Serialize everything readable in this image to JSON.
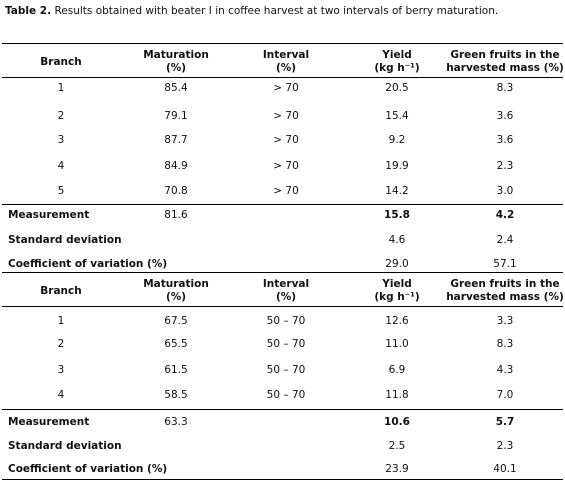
{
  "caption": {
    "label": "Table 2.",
    "text": "Results obtained with beater I in coffee harvest at two intervals of berry maturation."
  },
  "headers": {
    "branch": "Branch",
    "maturation_1": "Maturation",
    "maturation_2": "(%)",
    "interval_1": "Interval",
    "interval_2": "(%)",
    "yield_1": "Yield",
    "yield_2": "(kg h⁻¹)",
    "green_1": "Green fruits in the",
    "green_2": "harvested mass (%)"
  },
  "section1": {
    "rows": [
      {
        "branch": "1",
        "maturation": "85.4",
        "interval": "> 70",
        "yield": "20.5",
        "green": "8.3"
      },
      {
        "branch": "2",
        "maturation": "79.1",
        "interval": "> 70",
        "yield": "15.4",
        "green": "3.6"
      },
      {
        "branch": "3",
        "maturation": "87.7",
        "interval": "> 70",
        "yield": "9.2",
        "green": "3.6"
      },
      {
        "branch": "4",
        "maturation": "84.9",
        "interval": "> 70",
        "yield": "19.9",
        "green": "2.3"
      },
      {
        "branch": "5",
        "maturation": "70.8",
        "interval": "> 70",
        "yield": "14.2",
        "green": "3.0"
      }
    ],
    "measurement": {
      "label": "Measurement",
      "maturation": "81.6",
      "yield": "15.8",
      "green": "4.2"
    },
    "std": {
      "label": "Standard deviation",
      "yield": "4.6",
      "green": "2.4"
    },
    "cv": {
      "label": "Coefficient of variation (%)",
      "yield": "29.0",
      "green": "57.1"
    }
  },
  "section2": {
    "rows": [
      {
        "branch": "1",
        "maturation": "67.5",
        "interval": "50 – 70",
        "yield": "12.6",
        "green": "3.3"
      },
      {
        "branch": "2",
        "maturation": "65.5",
        "interval": "50 – 70",
        "yield": "11.0",
        "green": "8.3"
      },
      {
        "branch": "3",
        "maturation": "61.5",
        "interval": "50 – 70",
        "yield": "6.9",
        "green": "4.3"
      },
      {
        "branch": "4",
        "maturation": "58.5",
        "interval": "50 – 70",
        "yield": "11.8",
        "green": "7.0"
      }
    ],
    "measurement": {
      "label": "Measurement",
      "maturation": "63.3",
      "yield": "10.6",
      "green": "5.7"
    },
    "std": {
      "label": "Standard deviation",
      "yield": "2.5",
      "green": "2.3"
    },
    "cv": {
      "label": "Coefficient of variation (%)",
      "yield": "23.9",
      "green": "40.1"
    }
  }
}
